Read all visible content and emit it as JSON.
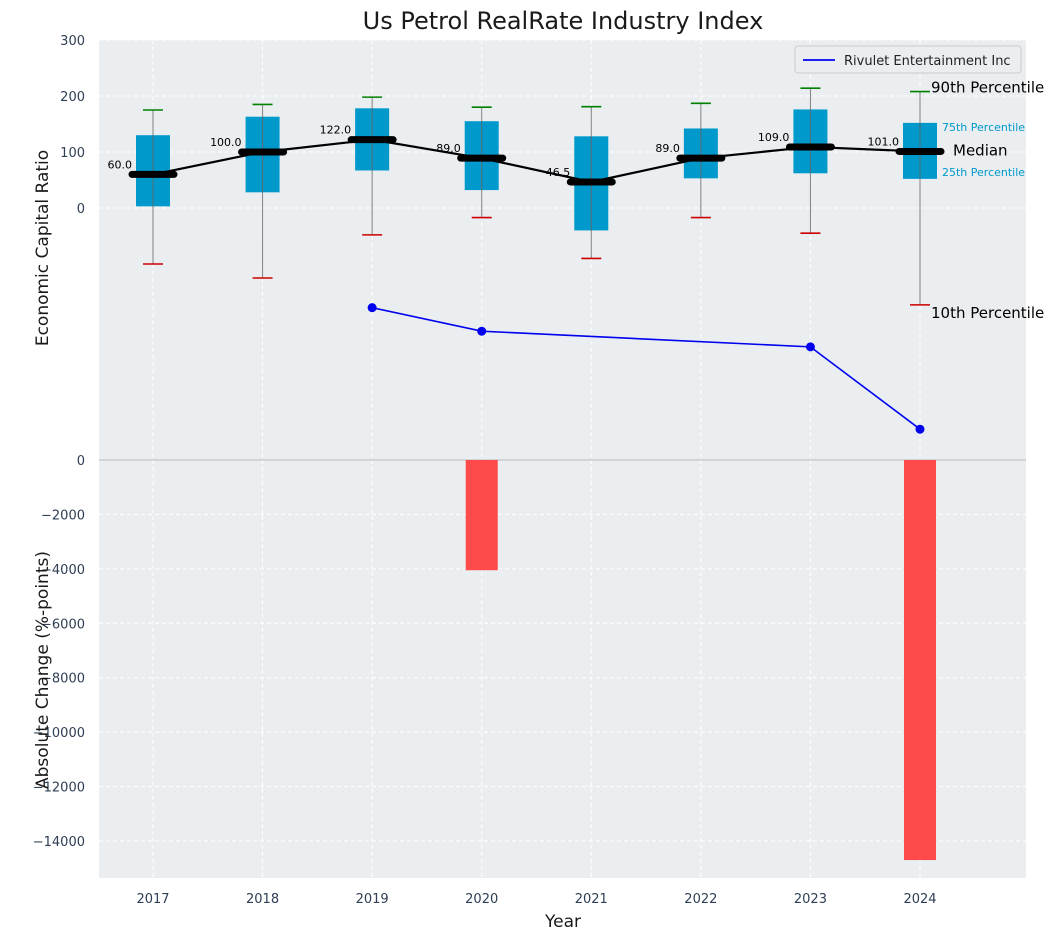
{
  "chart_data": {
    "type": "box",
    "title": "Us Petrol RealRate Industry Index",
    "xlabel": "Year",
    "top_panel": {
      "ylabel": "Economic Capital Ratio",
      "ylim": [
        -400,
        300
      ],
      "yticks": [
        0,
        100,
        200,
        300
      ],
      "years": [
        "2017",
        "2018",
        "2019",
        "2020",
        "2021",
        "2022",
        "2023",
        "2024"
      ],
      "p10": [
        -100,
        -125,
        -48,
        -17,
        -90,
        -17,
        -45,
        -173
      ],
      "p25": [
        3,
        28,
        67,
        32,
        -40,
        53,
        62,
        52
      ],
      "median": [
        60,
        100,
        122,
        89,
        46.5,
        89,
        109,
        101
      ],
      "median_labels": [
        "60.0",
        "100.0",
        "122.0",
        "89.0",
        "46.5",
        "89.0",
        "109.0",
        "101.0"
      ],
      "p75": [
        130,
        163,
        178,
        155,
        128,
        142,
        176,
        152
      ],
      "p90": [
        175,
        185,
        198,
        180,
        181,
        187,
        214,
        208
      ],
      "company_series": {
        "name": "Rivulet Entertainment Inc",
        "x": [
          "2019",
          "2020",
          "2023",
          "2024"
        ],
        "y": [
          -178,
          -220,
          -248,
          -395
        ]
      },
      "percentile_labels": {
        "p90": "90th Percentile",
        "p75": "75th Percentile",
        "median": "Median",
        "p25": "25th Percentile",
        "p10": "10th Percentile"
      }
    },
    "bottom_panel": {
      "type": "bar",
      "ylabel": "Absolute Change (%-points)",
      "ylim": [
        -15400,
        0
      ],
      "yticks": [
        0,
        -2000,
        -4000,
        -6000,
        -8000,
        -10000,
        -12000,
        -14000
      ],
      "years": [
        "2017",
        "2018",
        "2019",
        "2020",
        "2021",
        "2022",
        "2023",
        "2024"
      ],
      "values": [
        0,
        0,
        0,
        -4050,
        0,
        0,
        0,
        -14700
      ]
    }
  },
  "colors": {
    "box": "#0099cc",
    "median_line": "#000000",
    "company": "#0000ee",
    "whisker_high": "#008000",
    "whisker_low": "#cc0000",
    "bar": "#ff4040",
    "panel_bg": "#eaeef0",
    "grid": "#ffffff"
  }
}
